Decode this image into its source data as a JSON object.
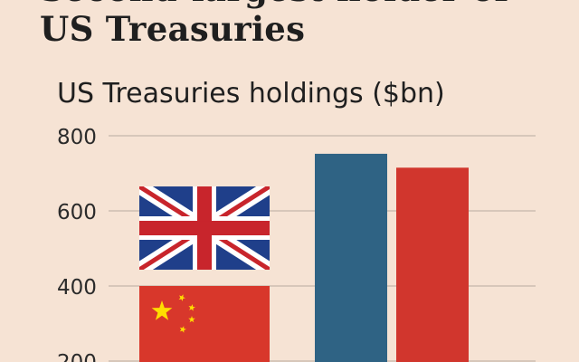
{
  "headline": {
    "line1": "Second-largest holder of",
    "line2": "US Treasuries"
  },
  "chart_data": {
    "type": "bar",
    "title": "US Treasuries holdings ($bn)",
    "categories": [
      "China",
      "UK",
      "",
      ""
    ],
    "values": [
      400,
      265,
      752,
      715
    ],
    "stacked_first_two": true,
    "yticks": [
      200,
      400,
      600,
      800
    ],
    "ylim": [
      200,
      800
    ],
    "grid": true,
    "colors": {
      "china": "#d8372b",
      "uk_blue": "#1f3f8a",
      "uk_red": "#c8252c",
      "bar3": "#2f6384",
      "bar4": "#d1362d",
      "grid": "#b8aba0"
    },
    "icons": [
      "china-flag-icon",
      "uk-flag-icon"
    ]
  }
}
